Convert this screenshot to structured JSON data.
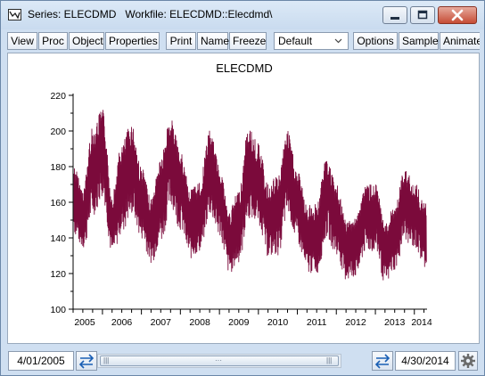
{
  "window": {
    "title": "Series: ELECDMD   Workfile: ELECDMD::Elecdmd\\"
  },
  "toolbar": {
    "buttons": [
      "View",
      "Proc",
      "Object",
      "Properties",
      "Print",
      "Name",
      "Freeze",
      "Options",
      "Sample",
      "Animate"
    ],
    "freq_select_value": "Default"
  },
  "chart_data": {
    "type": "line",
    "title": "ELECDMD",
    "xlabel": "",
    "ylabel": "",
    "x_tick_labels": [
      "2005",
      "2006",
      "2007",
      "2008",
      "2009",
      "2010",
      "2011",
      "2012",
      "2013",
      "2014"
    ],
    "y_tick_labels": [
      "100",
      "120",
      "140",
      "160",
      "180",
      "200",
      "220"
    ],
    "ylim": [
      100,
      220
    ],
    "xlim": [
      "2005-04-01",
      "2014-04-30"
    ],
    "grid": false,
    "line_color": "#7b0a3b",
    "series": [
      {
        "note_free": true,
        "x": [
          "2005-04",
          "2005-07",
          "2005-10",
          "2006-01",
          "2006-04",
          "2006-07",
          "2006-10",
          "2007-01",
          "2007-04",
          "2007-07",
          "2007-10",
          "2008-01",
          "2008-04",
          "2008-07",
          "2008-10",
          "2009-01",
          "2009-04",
          "2009-07",
          "2009-10",
          "2010-01",
          "2010-04",
          "2010-07",
          "2010-10",
          "2011-01",
          "2011-04",
          "2011-07",
          "2011-10",
          "2012-01",
          "2012-04",
          "2012-07",
          "2012-10",
          "2013-01",
          "2013-04",
          "2013-07",
          "2013-10",
          "2014-01",
          "2014-04"
        ],
        "upper": [
          182,
          168,
          202,
          212,
          165,
          193,
          205,
          180,
          162,
          186,
          208,
          188,
          168,
          172,
          200,
          182,
          155,
          167,
          202,
          193,
          170,
          175,
          200,
          178,
          158,
          160,
          185,
          170,
          150,
          152,
          170,
          170,
          148,
          158,
          178,
          172,
          160
        ],
        "lower": [
          140,
          132,
          150,
          160,
          128,
          140,
          150,
          137,
          124,
          135,
          155,
          142,
          126,
          130,
          150,
          138,
          118,
          124,
          148,
          145,
          127,
          128,
          150,
          134,
          118,
          118,
          138,
          128,
          114,
          116,
          130,
          130,
          112,
          120,
          136,
          132,
          122
        ]
      }
    ]
  },
  "bottom": {
    "start_date": "4/01/2005",
    "end_date": "4/30/2014"
  }
}
